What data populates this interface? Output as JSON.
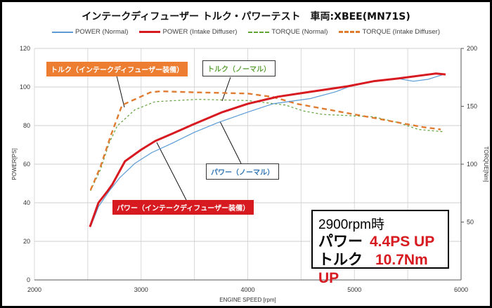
{
  "chart_data": {
    "type": "line",
    "title": "インテークディフューザー トルク・パワーテスト　車両:XBEE(MN71S)",
    "xlabel": "ENGINE SPEED [rpm]",
    "ylabel": "POWER[PS]",
    "y2label": "TORQUE[Nm]",
    "xlim": [
      2000,
      6000
    ],
    "ylim": [
      0,
      120
    ],
    "y2lim": [
      0,
      200
    ],
    "xticks": [
      2000,
      3000,
      4000,
      5000,
      6000
    ],
    "yticks": [
      0,
      20,
      40,
      60,
      80,
      100,
      120
    ],
    "y2ticks": [
      50,
      100,
      150,
      200
    ],
    "grid": true,
    "legend_position": "top",
    "series": [
      {
        "name": "POWER (Normal)",
        "axis": "left",
        "color": "#5b9bd5",
        "style": "solid",
        "x": [
          2530,
          2600,
          2700,
          2800,
          2941,
          3100,
          3296,
          3500,
          3717,
          4000,
          4237,
          4586,
          4822,
          4987,
          5200,
          5408,
          5553,
          5691,
          5836
        ],
        "y": [
          28,
          38,
          46,
          53,
          60.4,
          66,
          71,
          76.5,
          81.5,
          87,
          91.3,
          94,
          97.5,
          101,
          103,
          104.4,
          103,
          104,
          106.5
        ]
      },
      {
        "name": "POWER (Intake Diffuser)",
        "axis": "left",
        "color": "#d71920",
        "style": "solid",
        "x": [
          2520,
          2600,
          2685,
          2730,
          2849,
          3000,
          3132,
          3300,
          3480,
          3763,
          4000,
          4283,
          4586,
          4941,
          5178,
          5408,
          5763,
          5855
        ],
        "y": [
          27.5,
          40,
          46,
          49.5,
          61.5,
          67.5,
          72,
          76,
          80.4,
          87,
          91.3,
          95,
          97.5,
          100.4,
          103,
          104.4,
          107,
          106.5
        ]
      },
      {
        "name": "TORQUE (Normal)",
        "axis": "right",
        "color": "#5fa23a",
        "style": "dashed",
        "x": [
          2526,
          2618,
          2700,
          2776,
          2941,
          3132,
          3533,
          4000,
          4355,
          4520,
          4704,
          5178,
          5408,
          5599,
          5836
        ],
        "y": [
          77,
          95,
          118,
          133,
          147,
          154,
          156,
          155,
          151,
          146,
          143,
          141,
          136,
          130,
          128
        ]
      },
      {
        "name": "TORQUE (Intake Diffuser)",
        "axis": "right",
        "color": "#e07b30",
        "style": "dashed",
        "x": [
          2526,
          2618,
          2717,
          2822,
          3086,
          3178,
          3533,
          4000,
          4237,
          4467,
          4704,
          4941,
          5178,
          5408,
          5645,
          5809
        ],
        "y": [
          77.6,
          97.6,
          125,
          151,
          162,
          163,
          162,
          161,
          158,
          152,
          148,
          144,
          140,
          136,
          132,
          130
        ]
      }
    ],
    "annotations": [
      {
        "text": "トルク（インテークディフューザー装備）",
        "color": "#ed7d31"
      },
      {
        "text": "トルク（ノーマル）",
        "color": "#5fa23a"
      },
      {
        "text": "パワー（ノーマル）",
        "color": "#2e75b6"
      },
      {
        "text": "パワー（インテークディフューザー装備）",
        "color": "#d71920"
      }
    ]
  },
  "info_box": {
    "heading": "2900rpm時",
    "power_label": "パワー",
    "power_value": "4.4PS UP",
    "torque_label": "トルク",
    "torque_value": "10.7Nm UP"
  }
}
